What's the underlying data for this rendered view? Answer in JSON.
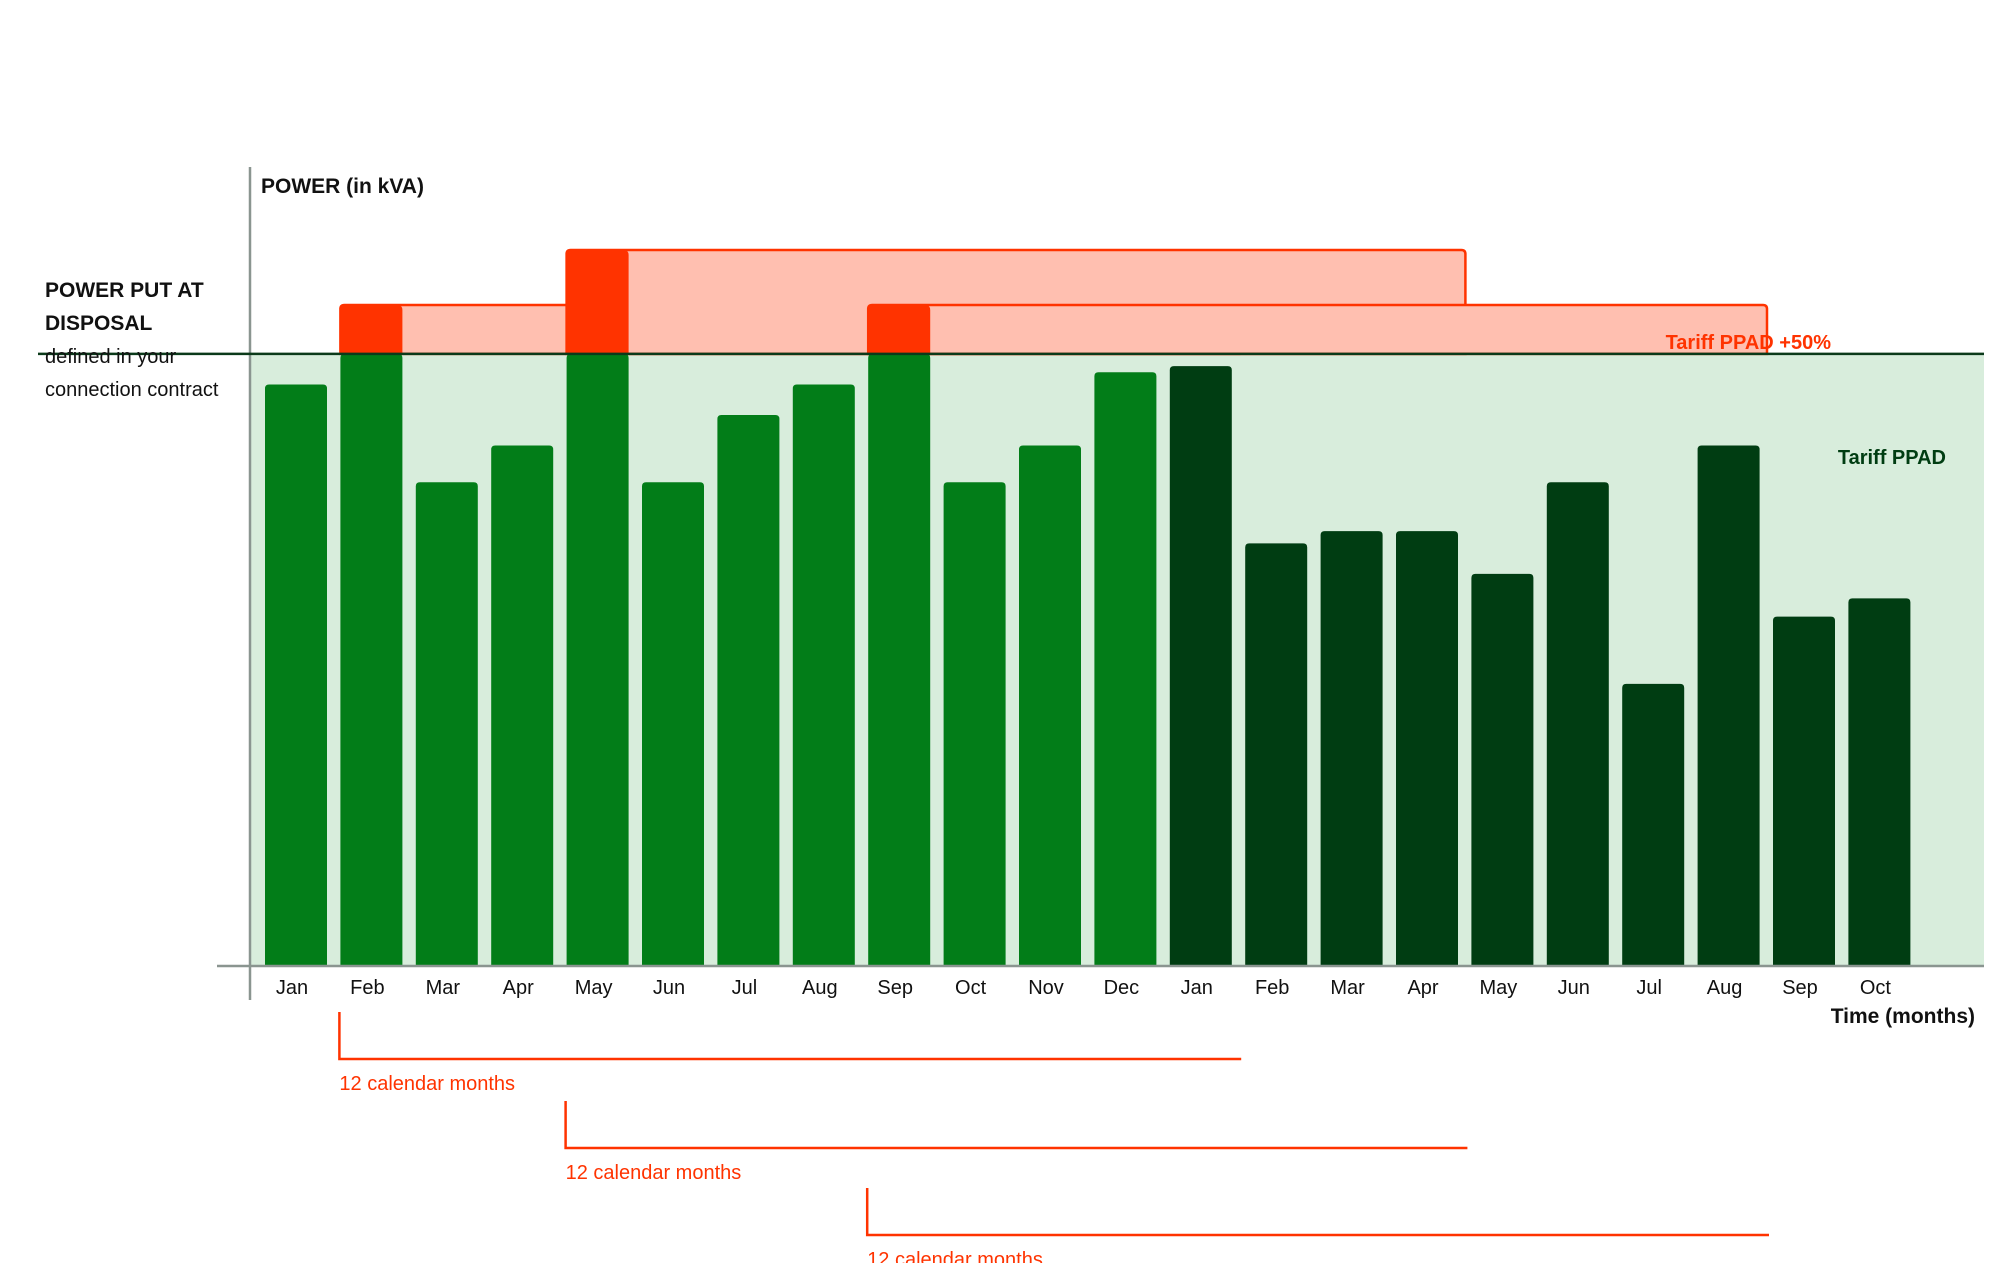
{
  "chart_data": {
    "type": "bar",
    "yaxis_title": "POWER (in kVA)",
    "xaxis_title": "Time (months)",
    "threshold": {
      "title_line1": "POWER PUT AT",
      "title_line2": "DISPOSAL",
      "desc_line1": "defined in your",
      "desc_line2": "connection contract",
      "value": 100
    },
    "zones": {
      "base_label": "Tariff PPAD",
      "surcharge_label": "Tariff PPAD +50%"
    },
    "categories": [
      "Jan",
      "Feb",
      "Mar",
      "Apr",
      "May",
      "Jun",
      "Jul",
      "Aug",
      "Sep",
      "Oct",
      "Nov",
      "Dec",
      "Jan",
      "Feb",
      "Mar",
      "Apr",
      "May",
      "Jun",
      "Jul",
      "Aug",
      "Sep",
      "Oct"
    ],
    "values": [
      95,
      108,
      79,
      85,
      117,
      79,
      90,
      95,
      108,
      79,
      85,
      97,
      98,
      69,
      71,
      71,
      64,
      79,
      46,
      85,
      57,
      60
    ],
    "ylim": [
      0,
      135
    ],
    "series_colors": {
      "first_period": "#027d18",
      "second_period": "#003d12",
      "exceed": "#ff3300",
      "surcharge_fill": "#ffbfb0",
      "base_fill": "#d8eddc"
    },
    "exceedances": [
      {
        "start_index": 1,
        "end_index": 13,
        "peak": 108
      },
      {
        "start_index": 4,
        "end_index": 16,
        "peak": 117
      },
      {
        "start_index": 8,
        "end_index": 20,
        "peak": 108
      }
    ],
    "brackets": [
      {
        "start_index": 1,
        "end_index": 13,
        "label": "12 calendar months"
      },
      {
        "start_index": 4,
        "end_index": 16,
        "label": "12 calendar months"
      },
      {
        "start_index": 8,
        "end_index": 20,
        "label": "12 calendar months"
      }
    ],
    "grid": false,
    "legend": "none"
  }
}
